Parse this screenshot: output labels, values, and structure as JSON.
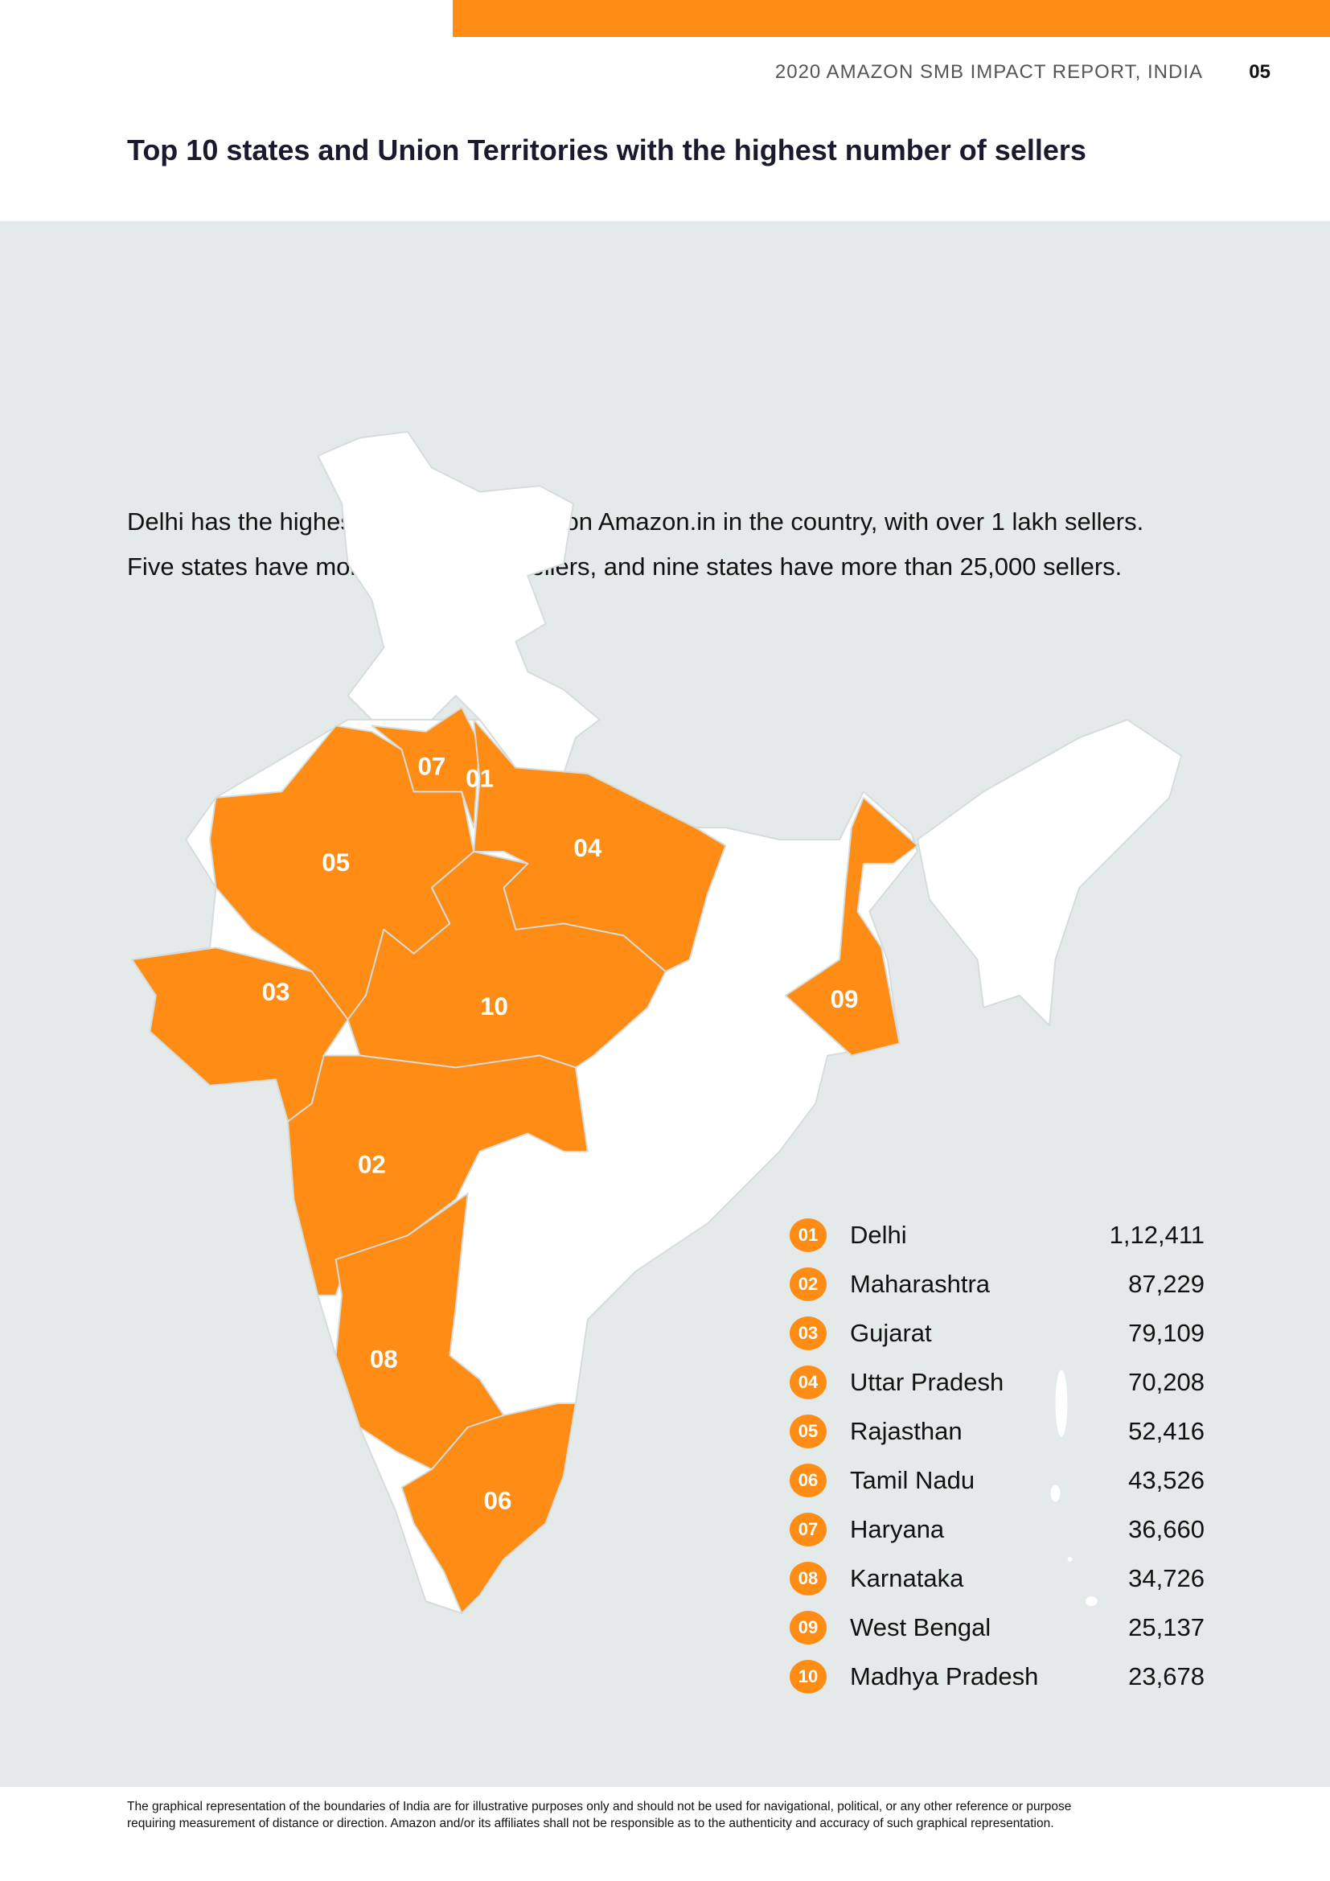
{
  "colors": {
    "accent": "#ff8c14",
    "panel_bg": "#e4eae9",
    "map_land": "#ffffff",
    "map_border": "#d5dcdb"
  },
  "header": {
    "report_title": "2020 AMAZON SMB IMPACT REPORT, INDIA",
    "page_number": "05"
  },
  "title": "Top 10 states and Union Territories with the highest number of sellers",
  "intro": [
    "Delhi has the highest number of sellers on Amazon.in in the country, with over 1 lakh sellers.",
    "Five states have more than 50,000 sellers, and nine states have more than 25,000 sellers."
  ],
  "map_labels": [
    "01",
    "02",
    "03",
    "04",
    "05",
    "06",
    "07",
    "08",
    "09",
    "10"
  ],
  "legend": [
    {
      "rank": "01",
      "state": "Delhi",
      "sellers": "1,12,411"
    },
    {
      "rank": "02",
      "state": "Maharashtra",
      "sellers": "87,229"
    },
    {
      "rank": "03",
      "state": "Gujarat",
      "sellers": "79,109"
    },
    {
      "rank": "04",
      "state": "Uttar Pradesh",
      "sellers": "70,208"
    },
    {
      "rank": "05",
      "state": "Rajasthan",
      "sellers": "52,416"
    },
    {
      "rank": "06",
      "state": "Tamil Nadu",
      "sellers": "43,526"
    },
    {
      "rank": "07",
      "state": "Haryana",
      "sellers": "36,660"
    },
    {
      "rank": "08",
      "state": "Karnataka",
      "sellers": "34,726"
    },
    {
      "rank": "09",
      "state": "West Bengal",
      "sellers": "25,137"
    },
    {
      "rank": "10",
      "state": "Madhya Pradesh",
      "sellers": "23,678"
    }
  ],
  "footer": [
    "The graphical representation of the boundaries of India are for illustrative purposes only and should not be used for navigational, political, or any other reference or purpose",
    "requiring measurement of distance or direction. Amazon and/or its affiliates shall not be responsible as to the authenticity and accuracy of such graphical representation."
  ]
}
